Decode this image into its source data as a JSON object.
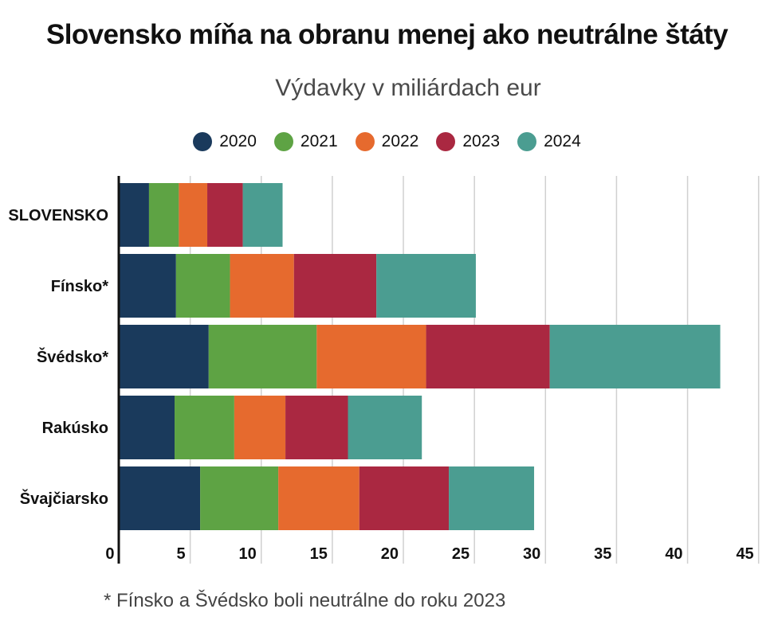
{
  "chart_data": {
    "type": "bar",
    "orientation": "horizontal",
    "stacked": true,
    "title": "Slovensko míňa na obranu menej ako neutrálne štáty",
    "subtitle": "Výdavky v miliárdach eur",
    "xlabel": "",
    "ylabel": "",
    "xlim": [
      0,
      45
    ],
    "xticks": [
      0,
      5,
      10,
      15,
      20,
      25,
      30,
      35,
      40,
      45
    ],
    "grid": true,
    "legend_position": "top-center",
    "categories": [
      "SLOVENSKO",
      "Fínsko*",
      "Švédsko*",
      "Rakúsko",
      "Švajčiarsko"
    ],
    "series": [
      {
        "name": "2020",
        "color": "#1a3a5c",
        "values": [
          2.1,
          4.0,
          6.3,
          3.9,
          5.7
        ]
      },
      {
        "name": "2021",
        "color": "#5ea344",
        "values": [
          2.1,
          3.8,
          7.6,
          4.2,
          5.5
        ]
      },
      {
        "name": "2022",
        "color": "#e66a2e",
        "values": [
          2.0,
          4.5,
          7.7,
          3.6,
          5.7
        ]
      },
      {
        "name": "2023",
        "color": "#aa2841",
        "values": [
          2.5,
          5.8,
          8.7,
          4.4,
          6.3
        ]
      },
      {
        "name": "2024",
        "color": "#4b9d91",
        "values": [
          2.8,
          7.0,
          12.0,
          5.2,
          6.0
        ]
      }
    ],
    "annotations": [
      "* Fínsko a Švédsko boli neutrálne do roku 2023"
    ]
  },
  "footnote": "* Fínsko a Švédsko boli neutrálne do roku 2023"
}
